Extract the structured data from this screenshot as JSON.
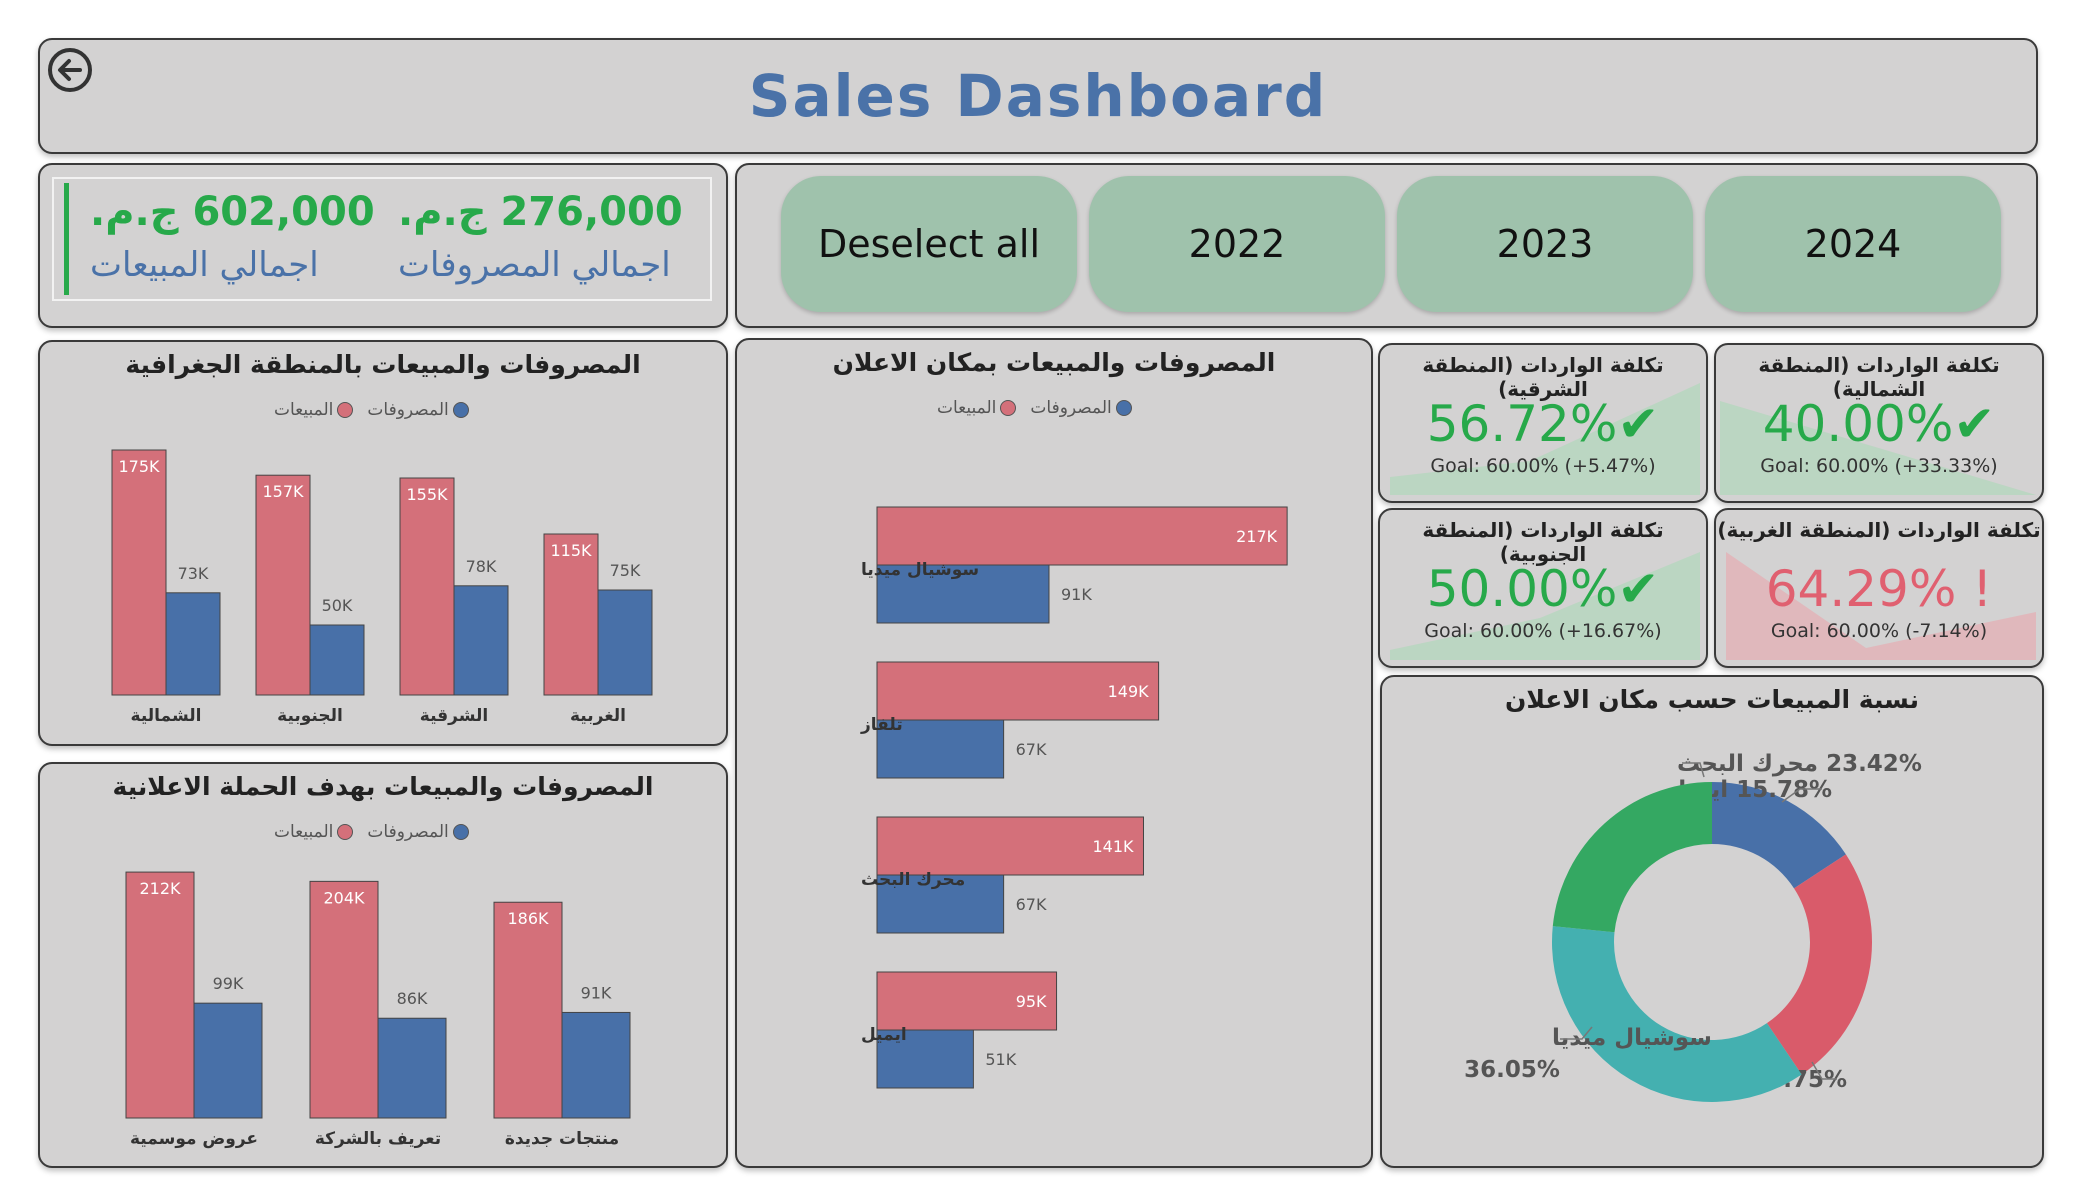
{
  "header": {
    "title": "Sales Dashboard"
  },
  "totals": {
    "sales_value": "602,000 ج.م.",
    "sales_label": "اجمالي المبيعات",
    "expenses_value": "276,000 ج.م.",
    "expenses_label": "اجمالي المصروفات"
  },
  "filters": {
    "deselect": "Deselect all",
    "years": [
      "2022",
      "2023",
      "2024"
    ]
  },
  "legend": {
    "sales": "المبيعات",
    "expenses": "المصروفات"
  },
  "colors": {
    "sales": "#d4707a",
    "expenses": "#4870a8",
    "good": "#27a94a",
    "bad": "#e06070",
    "panel": "#d3d2d2",
    "title": "#4a72a8"
  },
  "kpis": [
    {
      "title": "تكلفة الواردات (المنطقة الشمالية)",
      "value": "40.00%",
      "status": "good",
      "goal": "Goal: 60.00% (+33.33%)"
    },
    {
      "title": "تكلفة الواردات (المنطقة الشرقية)",
      "value": "56.72%",
      "status": "good",
      "goal": "Goal: 60.00% (+5.47%)"
    },
    {
      "title": "تكلفة الواردات (المنطقة الغربية)",
      "value": "64.29%",
      "status": "bad",
      "goal": "Goal: 60.00% (-7.14%)"
    },
    {
      "title": "تكلفة الواردات (المنطقة الجنوبية)",
      "value": "50.00%",
      "status": "good",
      "goal": "Goal: 60.00% (+16.67%)"
    }
  ],
  "chart_data": [
    {
      "type": "bar",
      "title": "المصروفات والمبيعات بالمنطقة الجغرافية",
      "categories": [
        "الشمالية",
        "الجنوبية",
        "الشرقية",
        "الغربية"
      ],
      "series": [
        {
          "name": "المبيعات",
          "values": [
            175,
            157,
            155,
            115
          ],
          "labels": [
            "175K",
            "157K",
            "155K",
            "115K"
          ]
        },
        {
          "name": "المصروفات",
          "values": [
            73,
            50,
            78,
            75
          ],
          "labels": [
            "73K",
            "50K",
            "78K",
            "75K"
          ]
        }
      ]
    },
    {
      "type": "bar",
      "title": "المصروفات والمبيعات بهدف الحملة الاعلانية",
      "categories": [
        "عروض موسمية",
        "تعريف بالشركة",
        "منتجات جديدة"
      ],
      "series": [
        {
          "name": "المبيعات",
          "values": [
            212,
            204,
            186
          ],
          "labels": [
            "212K",
            "204K",
            "186K"
          ]
        },
        {
          "name": "المصروفات",
          "values": [
            99,
            86,
            91
          ],
          "labels": [
            "99K",
            "86K",
            "91K"
          ]
        }
      ]
    },
    {
      "type": "bar",
      "orientation": "horizontal",
      "title": "المصروفات والمبيعات بمكان الاعلان",
      "categories": [
        "سوشيال ميديا",
        "تلفاز",
        "محرك البحث",
        "ايميل"
      ],
      "series": [
        {
          "name": "المبيعات",
          "values": [
            217,
            149,
            141,
            95
          ],
          "labels": [
            "217K",
            "149K",
            "141K",
            "95K"
          ]
        },
        {
          "name": "المصروفات",
          "values": [
            91,
            67,
            67,
            51
          ],
          "labels": [
            "91K",
            "67K",
            "67K",
            "51K"
          ]
        }
      ]
    },
    {
      "type": "pie",
      "variant": "donut",
      "title": "نسبة المبيعات حسب مكان الاعلان",
      "slices": [
        {
          "label": "ايميل",
          "value": 15.78,
          "text": "15.78%",
          "color": "#4870a8"
        },
        {
          "label": "تلفاز",
          "value": 24.75,
          "text": "24.75%",
          "color": "#d95b6a"
        },
        {
          "label": "سوشيال ميديا",
          "value": 36.05,
          "text": "36.05%",
          "color": "#44b0b0"
        },
        {
          "label": "محرك البحث",
          "value": 23.42,
          "text": "23.42%",
          "color": "#34a862"
        }
      ]
    }
  ]
}
